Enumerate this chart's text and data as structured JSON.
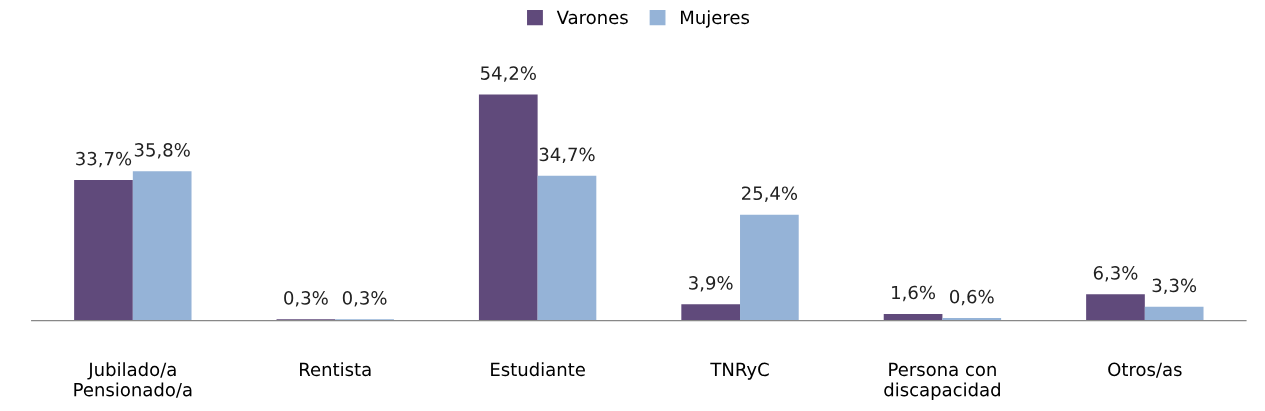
{
  "chart_data": {
    "type": "bar",
    "categories": [
      "Jubilado/a\nPensionado/a",
      "Rentista",
      "Estudiante",
      "TNRyC",
      "Persona con\ndiscapacidad",
      "Otros/as"
    ],
    "series": [
      {
        "name": "Varones",
        "color": "#604a7b",
        "values": [
          33.7,
          0.3,
          54.2,
          3.9,
          1.6,
          6.3
        ],
        "value_labels": [
          "33,7%",
          "0,3%",
          "54,2%",
          "3,9%",
          "1,6%",
          "6,3%"
        ]
      },
      {
        "name": "Mujeres",
        "color": "#95b3d7",
        "values": [
          35.8,
          0.3,
          34.7,
          25.4,
          0.6,
          3.3
        ],
        "value_labels": [
          "35,8%",
          "0,3%",
          "34,7%",
          "25,4%",
          "0,6%",
          "3,3%"
        ]
      }
    ],
    "legend": "top",
    "grid": false
  }
}
